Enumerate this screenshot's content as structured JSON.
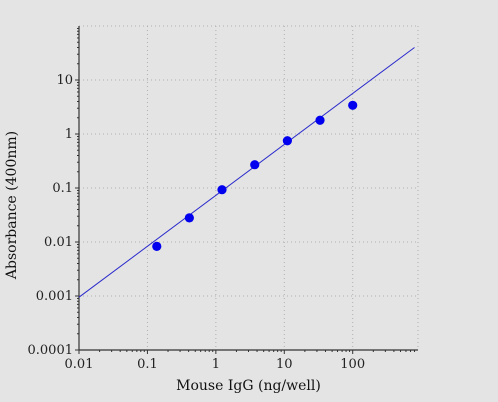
{
  "chart_data": {
    "type": "scatter",
    "title": "",
    "xlabel": "Mouse IgG (ng/well)",
    "ylabel": "Absorbance (400nm)",
    "x_scale": "log",
    "y_scale": "log",
    "xlim": [
      0.01,
      900
    ],
    "ylim": [
      0.0001,
      100
    ],
    "x_ticks": [
      0.01,
      0.1,
      1,
      10,
      100
    ],
    "x_tick_labels": [
      "0.01",
      "0.1",
      "1",
      "10",
      "100"
    ],
    "y_ticks": [
      0.0001,
      0.001,
      0.01,
      0.1,
      1,
      10
    ],
    "y_tick_labels": [
      "0.0001",
      "0.001",
      "0.01",
      "0.1",
      "1",
      "10"
    ],
    "grid": true,
    "colors": {
      "points": "#0000ee",
      "fit_line": "#2a2acc",
      "axis": "#333333",
      "grid": "#b0b0b0"
    },
    "series": [
      {
        "type": "scatter",
        "x": [
          0.137,
          0.41,
          1.23,
          3.7,
          11.1,
          33.3,
          100
        ],
        "y": [
          0.0083,
          0.028,
          0.093,
          0.27,
          0.75,
          1.8,
          3.4
        ]
      },
      {
        "type": "line",
        "x": [
          0.01,
          800
        ],
        "y": [
          0.00095,
          40
        ]
      }
    ]
  }
}
